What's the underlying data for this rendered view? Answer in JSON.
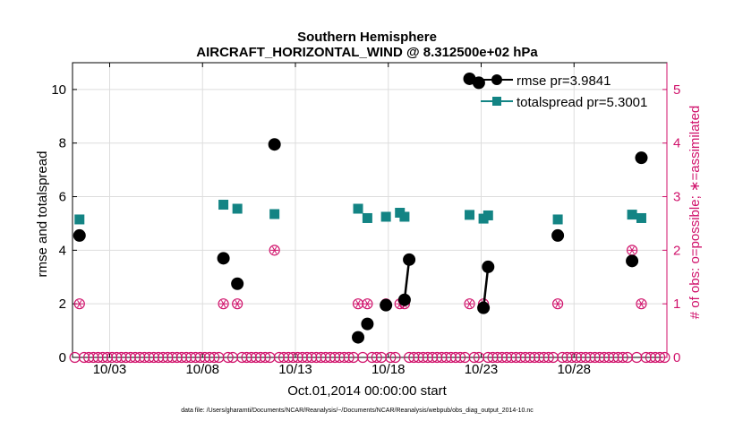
{
  "chart_data": {
    "type": "line",
    "title": "Southern Hemisphere",
    "subtitle": "AIRCRAFT_HORIZONTAL_WIND @ 8.312500e+02 hPa",
    "xlabel": "Oct.01,2014 00:00:00 start",
    "ylabel": "rmse and totalspread",
    "ylabel_right": "# of obs: o=possible; ∗=assimilated",
    "footnote": "data file: /Users/gharamti/Documents/NCAR/Reanalysis/~/Documents/NCAR/Reanalysis/webpub/obs_diag_output_2014-10.nc",
    "xlim": [
      1,
      33
    ],
    "ylim": [
      0,
      11
    ],
    "ylim_right": [
      0,
      5.5
    ],
    "x_ticks": [
      {
        "value": 3,
        "label": "10/03"
      },
      {
        "value": 8,
        "label": "10/08"
      },
      {
        "value": 13,
        "label": "10/13"
      },
      {
        "value": 18,
        "label": "10/18"
      },
      {
        "value": 23,
        "label": "10/23"
      },
      {
        "value": 28,
        "label": "10/28"
      }
    ],
    "y_ticks": [
      {
        "value": 0,
        "label": "0"
      },
      {
        "value": 2,
        "label": "2"
      },
      {
        "value": 4,
        "label": "4"
      },
      {
        "value": 6,
        "label": "6"
      },
      {
        "value": 8,
        "label": "8"
      },
      {
        "value": 10,
        "label": "10"
      }
    ],
    "y_ticks_right": [
      {
        "value": 0,
        "label": "0"
      },
      {
        "value": 1,
        "label": "1"
      },
      {
        "value": 2,
        "label": "2"
      },
      {
        "value": 3,
        "label": "3"
      },
      {
        "value": 4,
        "label": "4"
      },
      {
        "value": 5,
        "label": "5"
      }
    ],
    "legend_position": "top-right",
    "colors": {
      "rmse": "#000000",
      "spread": "#138484",
      "obs": "#d0126b",
      "grid": "#dddddd"
    },
    "series": [
      {
        "name": "rmse",
        "legend_label": "rmse pr=3.9841",
        "points": [
          [
            1.375,
            4.55
          ],
          [
            9.125,
            3.7
          ],
          [
            9.875,
            2.75
          ],
          [
            11.875,
            7.95
          ],
          [
            16.375,
            0.75
          ],
          [
            16.875,
            1.25
          ],
          [
            17.875,
            1.95
          ],
          [
            18.875,
            2.15
          ],
          [
            19.125,
            3.65
          ],
          [
            22.375,
            10.4
          ],
          [
            22.875,
            10.25
          ],
          [
            23.125,
            1.85
          ],
          [
            23.375,
            3.38
          ],
          [
            27.125,
            4.55
          ],
          [
            31.125,
            3.6
          ],
          [
            31.625,
            7.45
          ]
        ],
        "segments": [
          [
            [
              18.875,
              2.15
            ],
            [
              19.125,
              3.65
            ]
          ],
          [
            [
              22.375,
              10.4
            ],
            [
              22.875,
              10.25
            ]
          ],
          [
            [
              23.125,
              1.85
            ],
            [
              23.375,
              3.38
            ]
          ]
        ]
      },
      {
        "name": "totalspread",
        "legend_label": "totalspread pr=5.3001",
        "points": [
          [
            1.375,
            5.15
          ],
          [
            9.125,
            5.7
          ],
          [
            9.875,
            5.55
          ],
          [
            11.875,
            5.35
          ],
          [
            16.375,
            5.55
          ],
          [
            16.875,
            5.2
          ],
          [
            17.875,
            5.25
          ],
          [
            18.625,
            5.4
          ],
          [
            18.875,
            5.25
          ],
          [
            22.375,
            5.32
          ],
          [
            23.125,
            5.18
          ],
          [
            23.375,
            5.3
          ],
          [
            27.125,
            5.15
          ],
          [
            31.125,
            5.33
          ],
          [
            31.625,
            5.2
          ]
        ],
        "segments": [
          [
            [
              18.625,
              5.4
            ],
            [
              18.875,
              5.25
            ]
          ],
          [
            [
              23.125,
              5.18
            ],
            [
              23.375,
              5.3
            ]
          ]
        ]
      },
      {
        "name": "obs_count",
        "axis": "right",
        "nonzero": [
          [
            1.375,
            1
          ],
          [
            9.125,
            1
          ],
          [
            9.875,
            1
          ],
          [
            11.875,
            2
          ],
          [
            16.375,
            1
          ],
          [
            16.875,
            1
          ],
          [
            17.875,
            1
          ],
          [
            18.625,
            1
          ],
          [
            18.875,
            1
          ],
          [
            22.375,
            1
          ],
          [
            23.125,
            1
          ],
          [
            27.125,
            1
          ],
          [
            31.125,
            2
          ],
          [
            31.625,
            1
          ]
        ],
        "zero_start": 1.125,
        "zero_step": 0.25,
        "zero_end": 33.0
      }
    ]
  }
}
